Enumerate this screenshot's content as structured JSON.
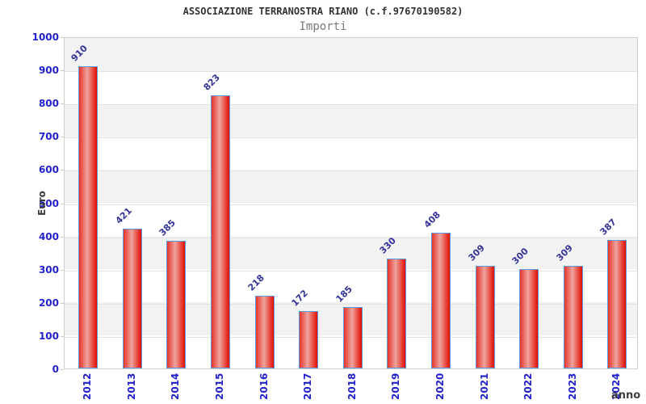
{
  "chart_data": {
    "type": "bar",
    "title": "ASSOCIAZIONE TERRANOSTRA RIANO (c.f.97670190582)",
    "subtitle": "Importi",
    "xlabel": "anno",
    "ylabel": "Euro",
    "categories": [
      "2012",
      "2013",
      "2014",
      "2015",
      "2016",
      "2017",
      "2018",
      "2019",
      "2020",
      "2021",
      "2022",
      "2023",
      "2024"
    ],
    "values": [
      910,
      421,
      385,
      823,
      218,
      172,
      185,
      330,
      408,
      309,
      300,
      309,
      387
    ],
    "ylim": [
      0,
      1000
    ],
    "yticks": [
      0,
      100,
      200,
      300,
      400,
      500,
      600,
      700,
      800,
      900,
      1000
    ],
    "grid": true,
    "legend": "none",
    "colors": {
      "bar_edge": "#e20d00",
      "bar_center": "#efa49e",
      "bar_border": "#5c9de0",
      "value_label": "#333399",
      "tick_label": "#2222cc",
      "band": "#f2f2f2",
      "title": "#333333",
      "subtitle": "#7a7a7a",
      "axis_title": "#3d3d3d"
    }
  }
}
